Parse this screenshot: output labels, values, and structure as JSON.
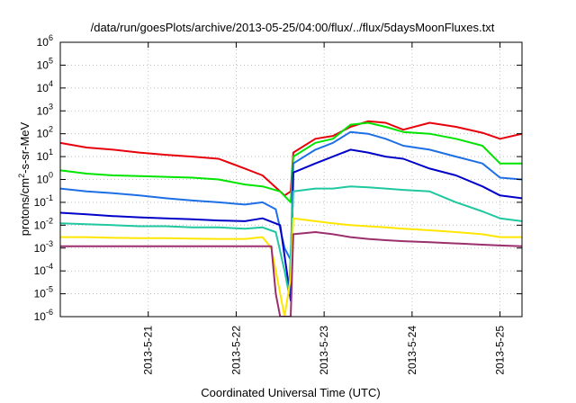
{
  "chart_data": {
    "type": "line",
    "title": "/data/run/goesPlots/archive/2013-05-25/04:00/flux/../flux/5daysMoonFluxes.txt",
    "xlabel": "Coordinated Universal Time (UTC)",
    "ylabel_main": "protons/cm",
    "ylabel_sup": "2",
    "ylabel_rest": "-s-sr-MeV",
    "yscale": "log",
    "ylim_exp": [
      -6,
      6
    ],
    "y_ticks": [
      {
        "base": "10",
        "exp": "6"
      },
      {
        "base": "10",
        "exp": "5"
      },
      {
        "base": "10",
        "exp": "4"
      },
      {
        "base": "10",
        "exp": "3"
      },
      {
        "base": "10",
        "exp": "2"
      },
      {
        "base": "10",
        "exp": "1"
      },
      {
        "base": "10",
        "exp": "0"
      },
      {
        "base": "10",
        "exp": "-1"
      },
      {
        "base": "10",
        "exp": "-2"
      },
      {
        "base": "10",
        "exp": "-3"
      },
      {
        "base": "10",
        "exp": "-4"
      },
      {
        "base": "10",
        "exp": "-5"
      },
      {
        "base": "10",
        "exp": "-6"
      }
    ],
    "xlim_days": [
      20.0,
      25.25
    ],
    "x_ticks": [
      {
        "label": "2013-5-21",
        "day": 21
      },
      {
        "label": "2013-5-22",
        "day": 22
      },
      {
        "label": "2013-5-23",
        "day": 23
      },
      {
        "label": "2013-5-24",
        "day": 24
      },
      {
        "label": "2013-5-25",
        "day": 25
      }
    ],
    "grid": true,
    "legend": "none",
    "series": [
      {
        "color": "#e8000b",
        "x": [
          20.0,
          20.3,
          20.6,
          20.9,
          21.2,
          21.5,
          21.8,
          22.1,
          22.3,
          22.55,
          22.62,
          22.65,
          22.9,
          23.1,
          23.3,
          23.5,
          23.7,
          23.9,
          24.2,
          24.5,
          24.8,
          25.0,
          25.25
        ],
        "y": [
          40,
          25,
          20,
          15,
          12,
          10,
          8,
          3,
          1.5,
          0.2,
          0.3,
          15,
          60,
          80,
          200,
          350,
          300,
          150,
          300,
          200,
          110,
          60,
          100
        ]
      },
      {
        "color": "#00e400",
        "x": [
          20.0,
          20.3,
          20.6,
          20.9,
          21.2,
          21.5,
          21.8,
          22.1,
          22.3,
          22.5,
          22.62,
          22.65,
          22.9,
          23.1,
          23.3,
          23.5,
          23.7,
          23.9,
          24.2,
          24.5,
          24.8,
          25.0,
          25.25
        ],
        "y": [
          2.5,
          1.8,
          1.5,
          1.4,
          1.3,
          1.2,
          1.0,
          0.6,
          0.5,
          0.3,
          0.1,
          10,
          40,
          60,
          250,
          300,
          200,
          120,
          100,
          60,
          30,
          5,
          5
        ]
      },
      {
        "color": "#1e6fe6",
        "x": [
          20.0,
          20.3,
          20.6,
          20.9,
          21.2,
          21.5,
          21.8,
          22.1,
          22.3,
          22.45,
          22.55,
          22.62,
          22.65,
          22.9,
          23.1,
          23.3,
          23.5,
          23.7,
          23.9,
          24.2,
          24.5,
          24.8,
          25.0,
          25.25
        ],
        "y": [
          0.4,
          0.3,
          0.25,
          0.2,
          0.15,
          0.12,
          0.1,
          0.08,
          0.1,
          0.05,
          0.001,
          0.0003,
          5,
          20,
          40,
          120,
          100,
          60,
          30,
          20,
          10,
          5,
          1.2,
          1.0
        ]
      },
      {
        "color": "#0000c8",
        "x": [
          20.0,
          20.3,
          20.6,
          20.9,
          21.2,
          21.5,
          21.8,
          22.1,
          22.3,
          22.5,
          22.6,
          22.62,
          22.65,
          22.9,
          23.1,
          23.3,
          23.5,
          23.7,
          23.9,
          24.2,
          24.5,
          24.8,
          25.0,
          25.25
        ],
        "y": [
          0.035,
          0.03,
          0.025,
          0.022,
          0.02,
          0.018,
          0.016,
          0.015,
          0.02,
          0.01,
          2e-05,
          5e-06,
          2,
          5,
          10,
          20,
          15,
          10,
          8,
          3,
          1.5,
          0.5,
          0.2,
          0.15
        ]
      },
      {
        "color": "#1fc8a0",
        "x": [
          20.0,
          20.3,
          20.6,
          20.9,
          21.2,
          21.5,
          21.8,
          22.1,
          22.3,
          22.45,
          22.55,
          22.6,
          22.65,
          22.9,
          23.1,
          23.3,
          23.5,
          23.7,
          23.9,
          24.2,
          24.5,
          24.8,
          25.0,
          25.25
        ],
        "y": [
          0.012,
          0.011,
          0.01,
          0.009,
          0.009,
          0.008,
          0.008,
          0.007,
          0.008,
          0.005,
          0.0001,
          1e-05,
          0.3,
          0.4,
          0.4,
          0.5,
          0.45,
          0.4,
          0.35,
          0.3,
          0.1,
          0.04,
          0.02,
          0.015
        ]
      },
      {
        "color": "#ffe600",
        "x": [
          20.0,
          20.3,
          20.6,
          20.9,
          21.2,
          21.5,
          21.8,
          22.1,
          22.3,
          22.4,
          22.5,
          22.55,
          22.62,
          22.65,
          22.9,
          23.1,
          23.3,
          23.5,
          23.7,
          23.9,
          24.2,
          24.5,
          24.8,
          25.0,
          25.25
        ],
        "y": [
          0.003,
          0.003,
          0.0028,
          0.0027,
          0.0027,
          0.0026,
          0.0025,
          0.0025,
          0.003,
          0.001,
          1e-05,
          1e-06,
          5e-05,
          0.02,
          0.015,
          0.012,
          0.01,
          0.009,
          0.008,
          0.007,
          0.006,
          0.005,
          0.004,
          0.003,
          0.003
        ]
      },
      {
        "color": "#9b2f6e",
        "x": [
          20.0,
          20.3,
          20.6,
          20.9,
          21.2,
          21.5,
          21.8,
          22.1,
          22.3,
          22.4,
          22.45,
          22.5,
          22.6,
          22.62,
          22.65,
          22.9,
          23.1,
          23.3,
          23.5,
          23.7,
          23.9,
          24.2,
          24.5,
          24.8,
          25.0,
          25.25
        ],
        "y": [
          0.0012,
          0.0012,
          0.0012,
          0.0012,
          0.0012,
          0.0012,
          0.0012,
          0.0012,
          0.0012,
          0.0012,
          1e-05,
          1e-06,
          1e-06,
          1e-06,
          0.004,
          0.005,
          0.004,
          0.003,
          0.0025,
          0.0022,
          0.002,
          0.0018,
          0.0016,
          0.0014,
          0.0013,
          0.0012
        ]
      }
    ]
  }
}
